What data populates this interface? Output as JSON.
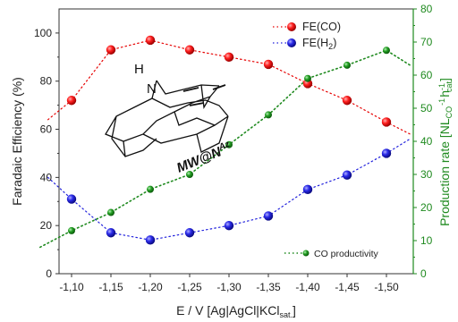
{
  "chart_data": {
    "type": "scatter",
    "x_axis": {
      "label_main": "E / V [Ag|AgCl|KCl",
      "label_sub": "sat.",
      "label_end": "]",
      "categories": [
        "-1,10",
        "-1,15",
        "-1,20",
        "-1,25",
        "-1,30",
        "-1,35",
        "-1,40",
        "-1,45",
        "-1,50"
      ],
      "values": [
        -1.1,
        -1.15,
        -1.2,
        -1.25,
        -1.3,
        -1.35,
        -1.4,
        -1.45,
        -1.5
      ]
    },
    "y_left": {
      "label": "Faradaic Efficiency (%)",
      "ylim": [
        0,
        110
      ],
      "ticks": [
        "0",
        "20",
        "40",
        "60",
        "80",
        "100"
      ]
    },
    "y_right": {
      "label": "Production rate [NL",
      "label_sub1": "CO",
      "label_sup1": "-1",
      "label_mid": "h",
      "label_sub2": "cat",
      "label_sup2": "-1",
      "label_end": "]",
      "ylim": [
        0,
        80
      ],
      "ticks": [
        "0",
        "10",
        "20",
        "30",
        "40",
        "50",
        "60",
        "70",
        "80"
      ]
    },
    "series": [
      {
        "name": "FE(CO)",
        "axis": "left",
        "color": "#e60000",
        "x": [
          -1.1,
          -1.15,
          -1.2,
          -1.25,
          -1.3,
          -1.35,
          -1.4,
          -1.45,
          -1.5
        ],
        "y": [
          72,
          93,
          97,
          93,
          90,
          87,
          79,
          72,
          63
        ]
      },
      {
        "name": "FE(H",
        "name_sub": "2",
        "name_end": ")",
        "axis": "left",
        "color": "#1f1fdc",
        "x": [
          -1.1,
          -1.15,
          -1.2,
          -1.25,
          -1.3,
          -1.35,
          -1.4,
          -1.45,
          -1.5
        ],
        "y": [
          31,
          17,
          14,
          17,
          20,
          24,
          35,
          41,
          50
        ]
      },
      {
        "name": "CO productivity",
        "axis": "right",
        "color": "#1f8a1f",
        "x": [
          -1.1,
          -1.15,
          -1.2,
          -1.25,
          -1.3,
          -1.35,
          -1.4,
          -1.45,
          -1.5
        ],
        "y": [
          13,
          18.5,
          25.5,
          30,
          39,
          48,
          59,
          63,
          67.5
        ]
      }
    ],
    "extrapolated_ends": {
      "FE(CO)": {
        "x": [
          -1.07,
          -1.53
        ],
        "y": [
          64,
          58
        ]
      },
      "FE(H2)": {
        "x": [
          -1.07,
          -1.53
        ],
        "y": [
          40,
          56
        ]
      },
      "CO productivity": {
        "x": [
          -1.06,
          -1.53
        ],
        "y": [
          8,
          63
        ]
      }
    },
    "legend": {
      "placement": "top-right and bottom-right"
    },
    "inset": {
      "label_main": "MW@N",
      "label_sup": "Az",
      "atom": "N",
      "atom_h": "H"
    },
    "colors": {
      "left_axis": "#222222",
      "right_axis": "#1f8a1f"
    }
  }
}
